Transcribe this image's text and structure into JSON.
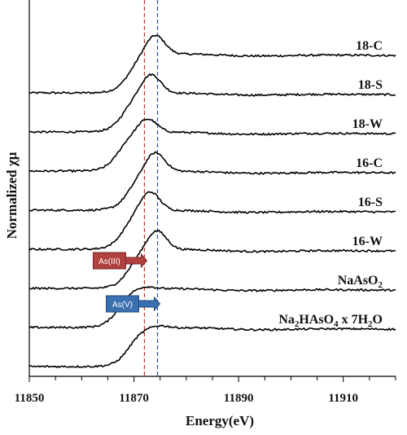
{
  "chart_data": {
    "type": "line",
    "xlabel": "Energy(eV)",
    "ylabel": "Normalized χμ",
    "xlim": [
      11850,
      11920
    ],
    "x_ticks": [
      11850,
      11870,
      11890,
      11910
    ],
    "grid": false,
    "reference_lines": [
      {
        "energy": 11872,
        "color": "#c0392b",
        "style": "dashed",
        "marker": "As(III)"
      },
      {
        "energy": 11874.5,
        "color": "#2e4fa6",
        "style": "dashed",
        "marker": "As(V)"
      }
    ],
    "series": [
      {
        "name": "18-C",
        "label_parts": [
          {
            "t": "18-C"
          }
        ],
        "edge": 11869,
        "peak_x": 11874.0,
        "peak_height": 1.55,
        "post_level": 1.0
      },
      {
        "name": "18-S",
        "label_parts": [
          {
            "t": "18-S"
          }
        ],
        "edge": 11868,
        "peak_x": 11873.2,
        "peak_height": 1.55,
        "post_level": 1.0
      },
      {
        "name": "18-W",
        "label_parts": [
          {
            "t": "18-W"
          }
        ],
        "edge": 11867,
        "peak_x": 11872.5,
        "peak_height": 1.4,
        "post_level": 1.0
      },
      {
        "name": "16-C",
        "label_parts": [
          {
            "t": "16-C"
          }
        ],
        "edge": 11869,
        "peak_x": 11874.0,
        "peak_height": 1.55,
        "post_level": 1.0
      },
      {
        "name": "16-S",
        "label_parts": [
          {
            "t": "16-S"
          }
        ],
        "edge": 11868,
        "peak_x": 11873.0,
        "peak_height": 1.55,
        "post_level": 1.0
      },
      {
        "name": "16-W",
        "label_parts": [
          {
            "t": "16-W"
          }
        ],
        "edge": 11869,
        "peak_x": 11874.3,
        "peak_height": 1.55,
        "post_level": 1.0
      },
      {
        "name": "NaAsO2",
        "label_parts": [
          {
            "t": "NaAsO"
          },
          {
            "t": "2",
            "sub": true
          }
        ],
        "edge": 11867,
        "peak_x": 11872.0,
        "peak_height": 1.1,
        "post_level": 1.0
      },
      {
        "name": "Na2HAsO4 x 7H2O",
        "label_parts": [
          {
            "t": "Na"
          },
          {
            "t": "2",
            "sub": true
          },
          {
            "t": "HAsO"
          },
          {
            "t": "4",
            "sub": true
          },
          {
            "t": " x 7H"
          },
          {
            "t": "2",
            "sub": true
          },
          {
            "t": "O"
          }
        ],
        "edge": 11869,
        "peak_x": 11874.5,
        "peak_height": 1.1,
        "post_level": 1.0
      }
    ]
  }
}
